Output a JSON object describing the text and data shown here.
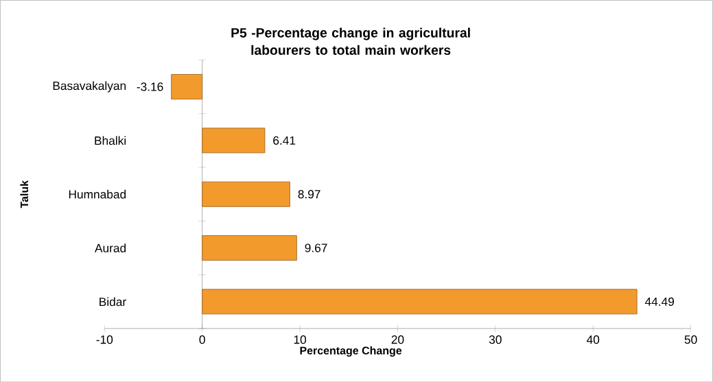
{
  "chart_data": {
    "type": "bar",
    "orientation": "horizontal",
    "title": "P5 -Percentage change in agricultural labourers to total main workers",
    "xlabel": "Percentage Change",
    "ylabel": "Taluk",
    "categories": [
      "Basavakalyan",
      "Bhalki",
      "Humnabad",
      "Aurad",
      "Bidar"
    ],
    "values": [
      -3.16,
      6.41,
      8.97,
      9.67,
      44.49
    ],
    "color": "#f39a2c",
    "xlim": [
      -10,
      50
    ],
    "xticks": [
      -10,
      0,
      10,
      20,
      30,
      40,
      50
    ],
    "data_labels": true
  }
}
